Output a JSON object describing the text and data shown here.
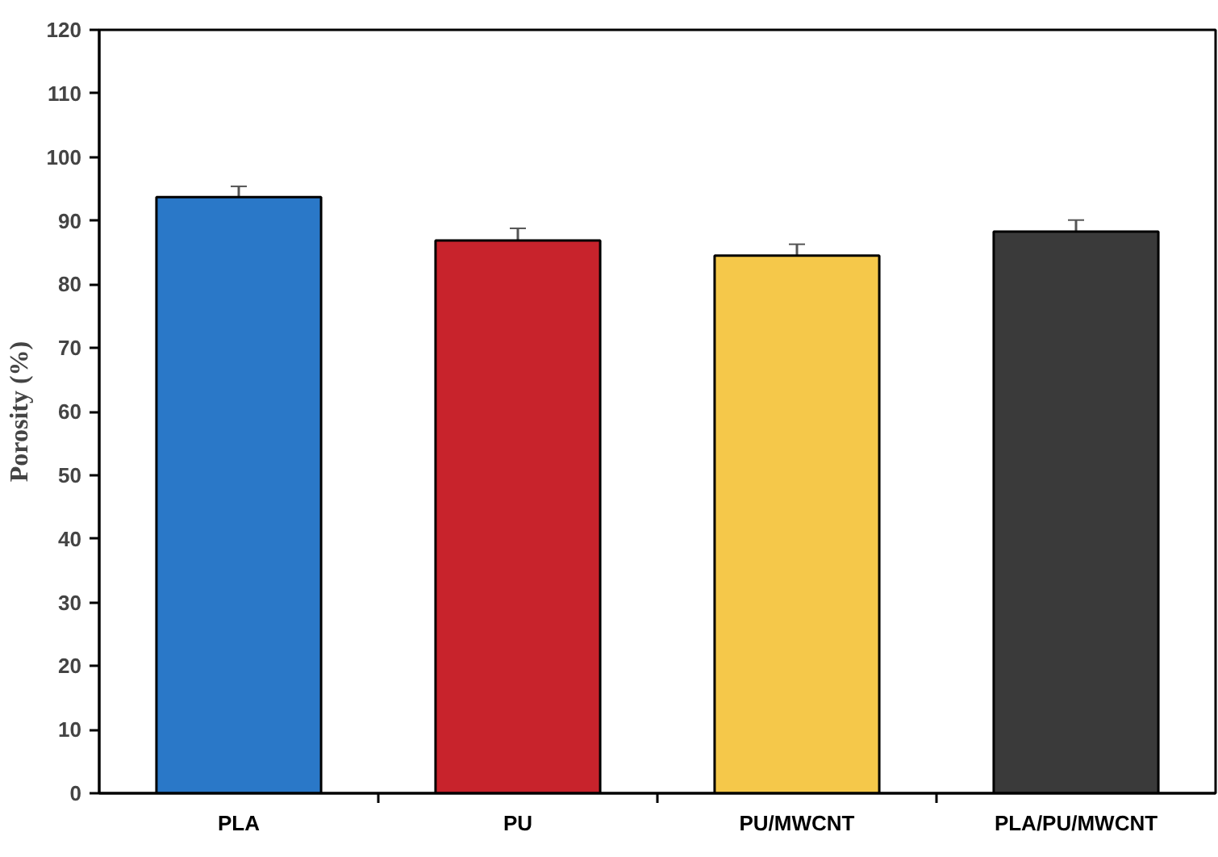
{
  "chart_data": {
    "type": "bar",
    "ylabel": "Porosity (%)",
    "categories": [
      "PLA",
      "PU",
      "PU/MWCNT",
      "PLA/PU/MWCNT"
    ],
    "values": [
      93.7,
      86.9,
      84.5,
      88.3
    ],
    "errors": [
      1.7,
      1.9,
      1.8,
      1.8
    ],
    "colors": [
      "#2a78c8",
      "#c8232c",
      "#f5c84a",
      "#3a3a3a"
    ],
    "ylim": [
      0,
      120
    ],
    "yticks": [
      0,
      10,
      20,
      30,
      40,
      50,
      60,
      70,
      80,
      90,
      100,
      110,
      120
    ],
    "grid": false
  }
}
